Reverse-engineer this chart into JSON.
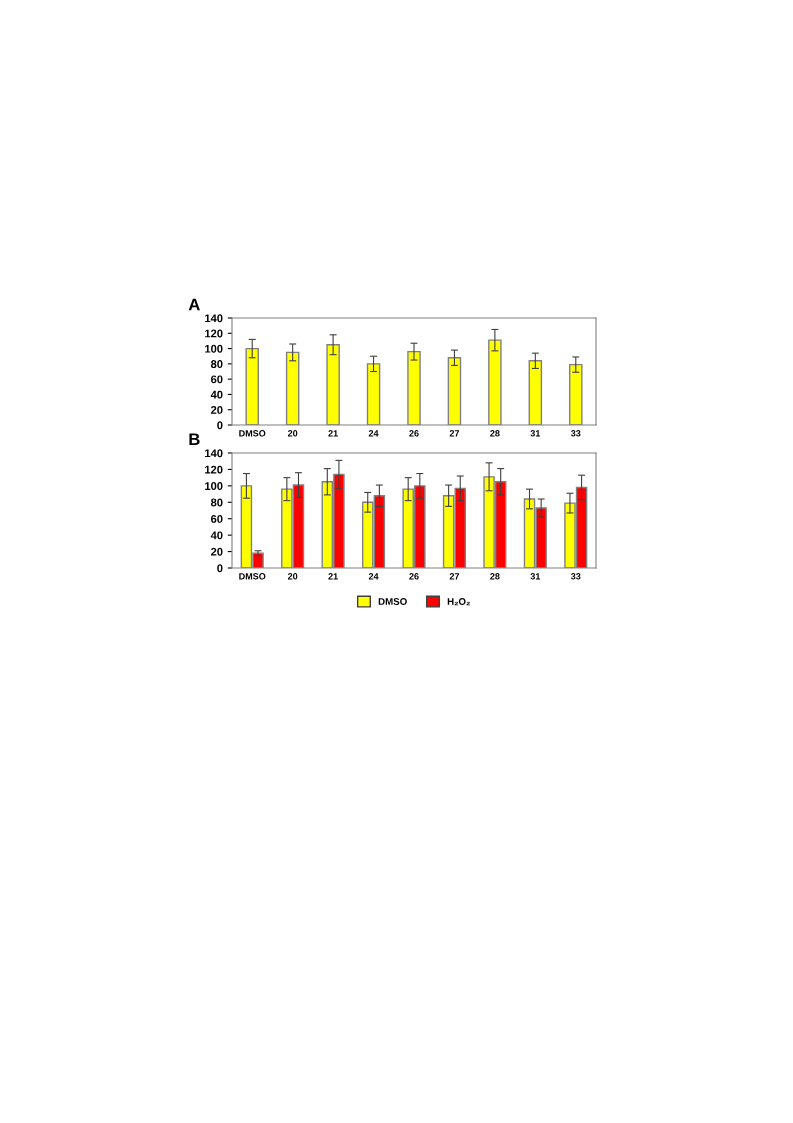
{
  "chart_data": [
    {
      "type": "bar",
      "title": "A",
      "categories": [
        "DMSO",
        "20",
        "21",
        "24",
        "26",
        "27",
        "28",
        "31",
        "33"
      ],
      "ylim": [
        0,
        140
      ],
      "yticks": [
        0,
        20,
        40,
        60,
        80,
        100,
        120,
        140
      ],
      "grid": false,
      "legend": false,
      "series": [
        {
          "color": "#ffff00",
          "values": [
            100,
            95,
            105,
            80,
            96,
            88,
            111,
            84,
            79
          ],
          "errors": [
            12,
            11,
            13,
            10,
            11,
            10,
            14,
            10,
            10
          ]
        }
      ]
    },
    {
      "type": "bar",
      "title": "B",
      "categories": [
        "DMSO",
        "20",
        "21",
        "24",
        "26",
        "27",
        "28",
        "31",
        "33"
      ],
      "ylim": [
        0,
        140
      ],
      "yticks": [
        0,
        20,
        40,
        60,
        80,
        100,
        120,
        140
      ],
      "grid": false,
      "legend": "bottom",
      "series": [
        {
          "name": "DMSO",
          "color": "#ffff00",
          "values": [
            100,
            96,
            105,
            80,
            96,
            88,
            111,
            84,
            79
          ],
          "errors": [
            15,
            14,
            16,
            12,
            14,
            13,
            17,
            12,
            12
          ]
        },
        {
          "name": "H₂O₂",
          "color": "#ff0000",
          "values": [
            18,
            101,
            114,
            88,
            100,
            97,
            105,
            73,
            98
          ],
          "errors": [
            3,
            15,
            17,
            13,
            15,
            15,
            16,
            11,
            15
          ]
        }
      ]
    }
  ]
}
